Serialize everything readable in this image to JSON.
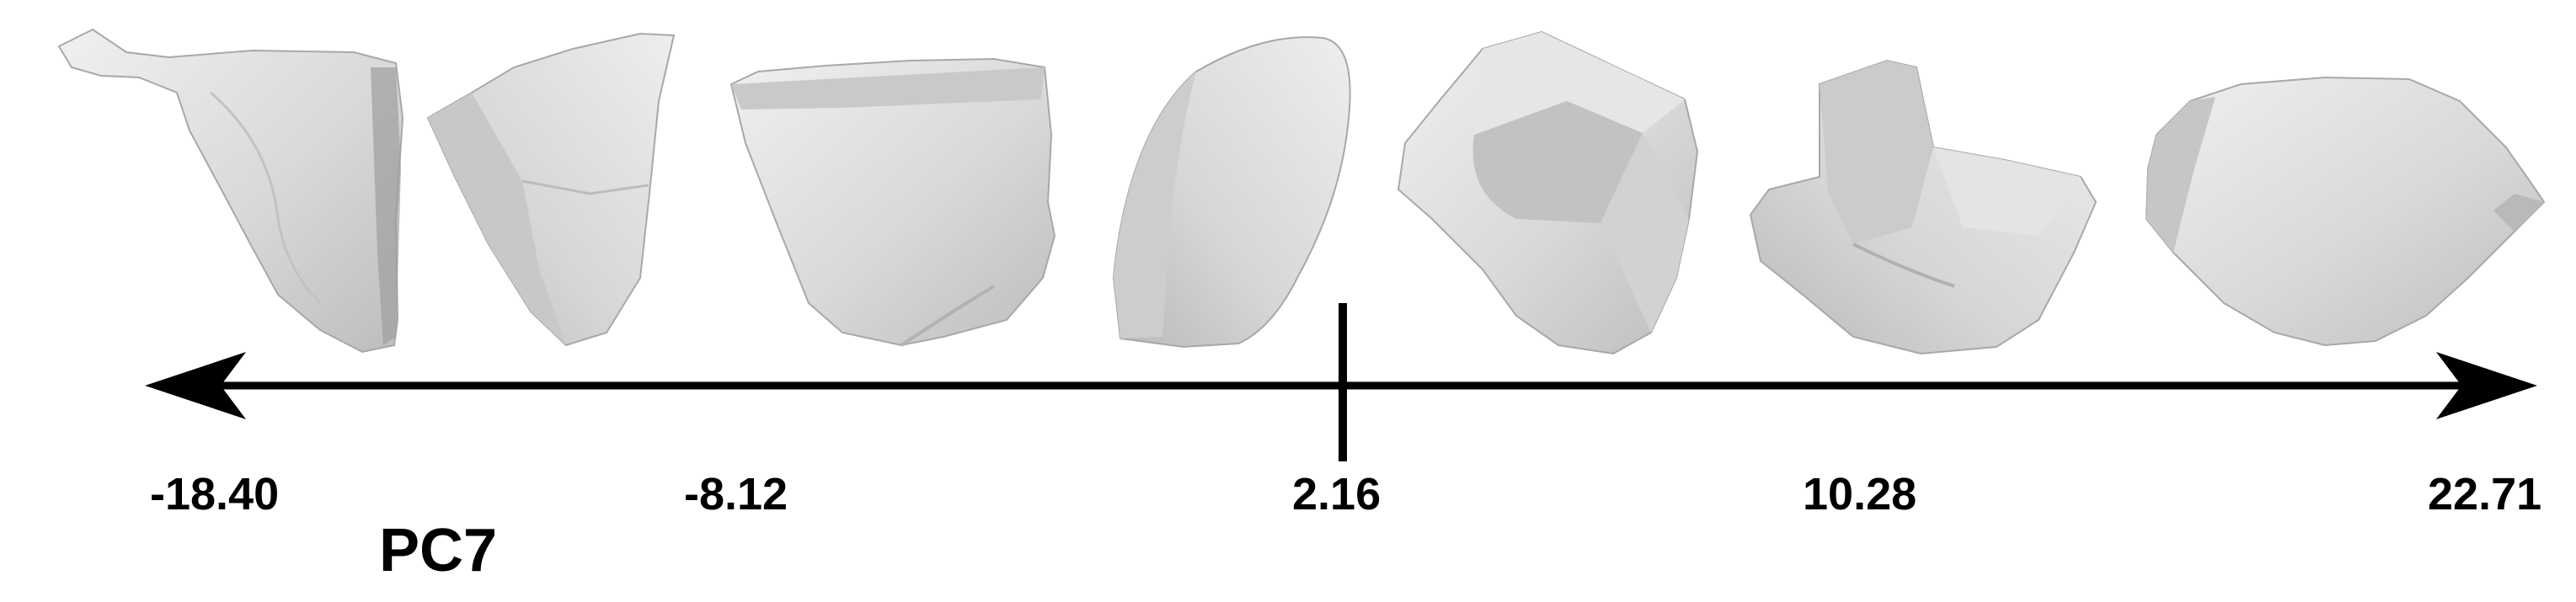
{
  "diagram": {
    "axis_title": "PC7",
    "tick_labels": [
      "-18.40",
      "-8.12",
      "2.16",
      "10.28",
      "22.71"
    ],
    "specimen_count": 7,
    "colors": {
      "ink": "#000000",
      "specimen_fill": "#d9d9d9",
      "specimen_shade": "#b5b5b5",
      "specimen_light": "#ececec",
      "background": "#ffffff"
    }
  }
}
